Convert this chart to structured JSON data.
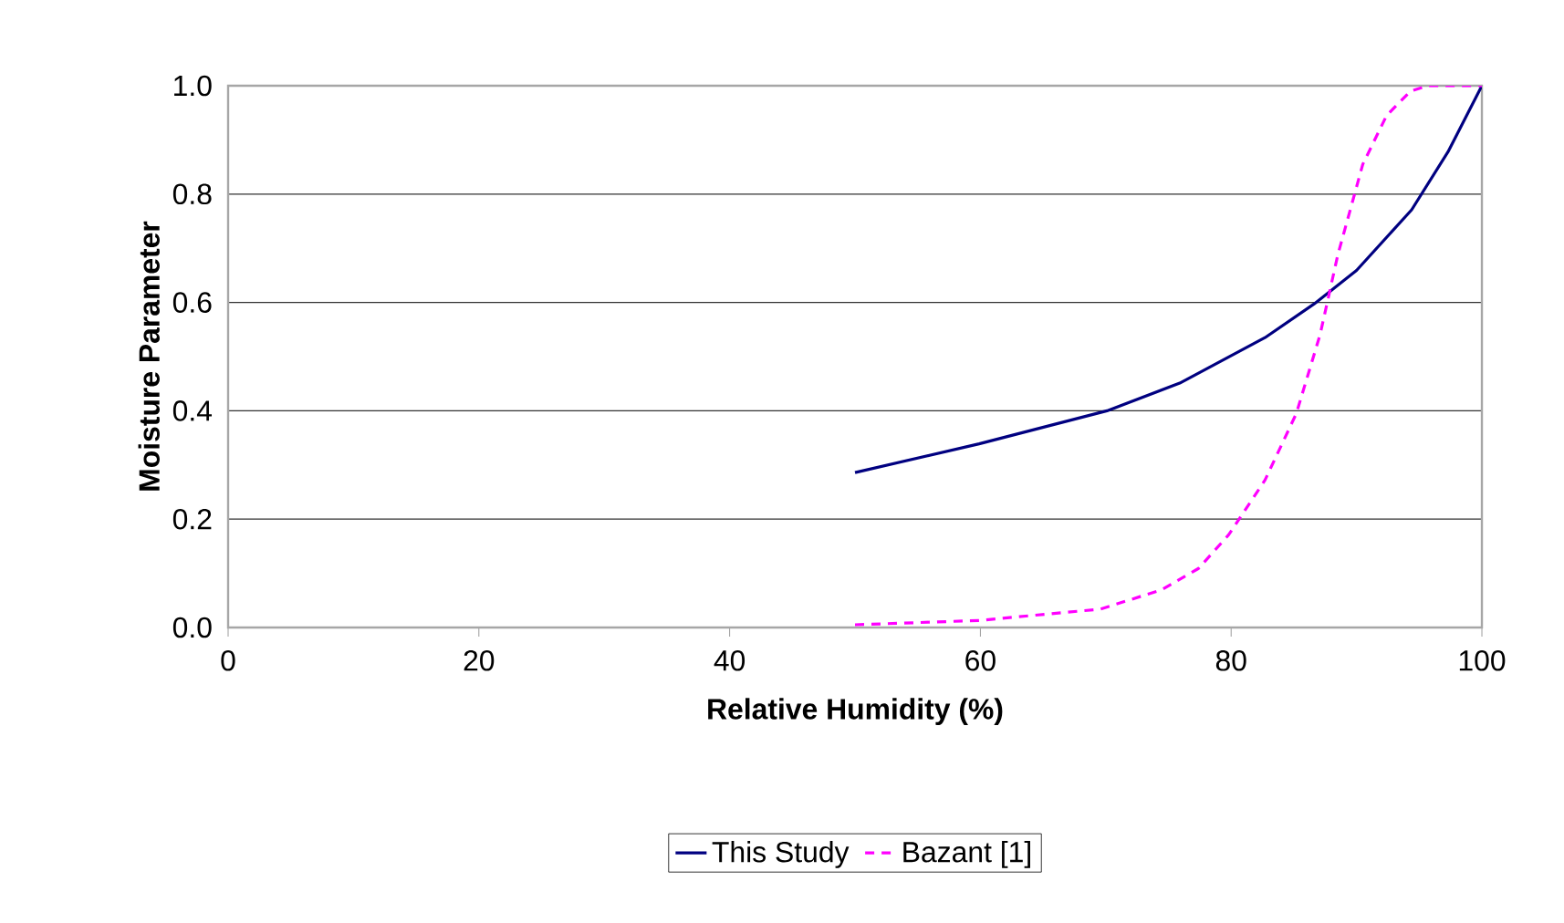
{
  "chart_data": {
    "type": "line",
    "xlabel": "Relative Humidity (%)",
    "ylabel": "Moisture Parameter",
    "xlim": [
      0,
      100
    ],
    "xticks": [
      0,
      20,
      40,
      60,
      80,
      100
    ],
    "ylim": [
      0,
      1
    ],
    "yticks": [
      {
        "value": 0,
        "label": "0.0"
      },
      {
        "value": 0.2,
        "label": "0.2"
      },
      {
        "value": 0.4,
        "label": "0.4"
      },
      {
        "value": 0.6,
        "label": "0.6"
      },
      {
        "value": 0.8,
        "label": "0.8"
      },
      {
        "value": 1,
        "label": "1.0"
      }
    ],
    "grid": "y",
    "legend": "bottom",
    "series": [
      {
        "name": "This Study",
        "color": "#000080",
        "line_style": "solid",
        "x": [
          50,
          59.9,
          70.1,
          75.9,
          82.7,
          86.6,
          90,
          94.4,
          97.3,
          100
        ],
        "values": [
          0.286,
          0.339,
          0.4,
          0.451,
          0.535,
          0.597,
          0.659,
          0.771,
          0.878,
          1.0
        ]
      },
      {
        "name": "Bazant [1]",
        "color": "#ff00ff",
        "line_style": "dashed",
        "x": [
          50,
          59.9,
          69.6,
          74.5,
          77.4,
          79.8,
          82.7,
          85.2,
          87.1,
          88.5,
          90.5,
          92.4,
          94.3,
          95.7,
          100
        ],
        "values": [
          0.005,
          0.013,
          0.034,
          0.07,
          0.109,
          0.171,
          0.272,
          0.395,
          0.541,
          0.687,
          0.855,
          0.945,
          0.99,
          1.0,
          1.0
        ]
      }
    ]
  }
}
